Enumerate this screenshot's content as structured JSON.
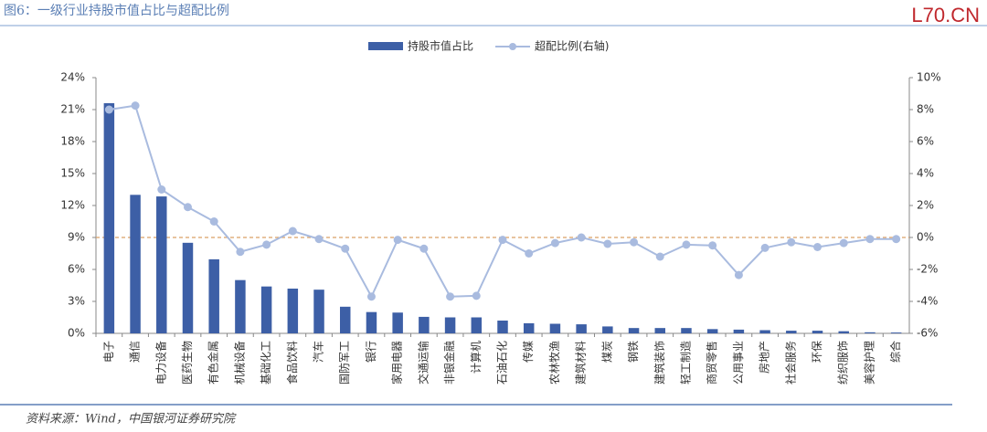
{
  "header": {
    "title": "图6：一级行业持股市值占比与超配比例",
    "logo": "L70.CN"
  },
  "footer": {
    "source": "资料来源：Wind，中国银河证券研究院"
  },
  "chart_data": {
    "type": "bar-line",
    "categories": [
      "电子",
      "通信",
      "电力设备",
      "医药生物",
      "有色金属",
      "机械设备",
      "基础化工",
      "食品饮料",
      "汽车",
      "国防军工",
      "银行",
      "家用电器",
      "交通运输",
      "非银金融",
      "计算机",
      "石油石化",
      "传媒",
      "农林牧渔",
      "建筑材料",
      "煤炭",
      "钢铁",
      "建筑装饰",
      "轻工制造",
      "商贸零售",
      "公用事业",
      "房地产",
      "社会服务",
      "环保",
      "纺织服饰",
      "美容护理",
      "综合"
    ],
    "series": [
      {
        "name": "持股市值占比",
        "type": "bar",
        "color": "#3d5fa6",
        "values": [
          21.6,
          13.0,
          12.85,
          8.5,
          6.95,
          5.0,
          4.4,
          4.2,
          4.1,
          2.5,
          2.0,
          1.95,
          1.55,
          1.5,
          1.5,
          1.2,
          0.95,
          0.9,
          0.85,
          0.65,
          0.5,
          0.5,
          0.5,
          0.4,
          0.35,
          0.3,
          0.25,
          0.25,
          0.2,
          0.1,
          0.08
        ]
      },
      {
        "name": "超配比例(右轴)",
        "type": "line",
        "axis": "y2",
        "color": "#a9bbdf",
        "values": [
          8.0,
          8.25,
          3.0,
          1.9,
          1.0,
          -0.9,
          -0.45,
          0.4,
          -0.1,
          -0.7,
          -3.7,
          -0.15,
          -0.7,
          -3.7,
          -3.65,
          -0.15,
          -1.0,
          -0.35,
          0.0,
          -0.4,
          -0.3,
          -1.2,
          -0.45,
          -0.5,
          -2.35,
          -0.65,
          -0.3,
          -0.6,
          -0.35,
          -0.1,
          -0.1
        ]
      }
    ],
    "ylim": [
      0,
      24
    ],
    "yticks": [
      {
        "value": 0,
        "label": "0%"
      },
      {
        "value": 3,
        "label": "3%"
      },
      {
        "value": 6,
        "label": "6%"
      },
      {
        "value": 9,
        "label": "9%"
      },
      {
        "value": 12,
        "label": "12%"
      },
      {
        "value": 15,
        "label": "15%"
      },
      {
        "value": 18,
        "label": "18%"
      },
      {
        "value": 21,
        "label": "21%"
      },
      {
        "value": 24,
        "label": "24%"
      }
    ],
    "y2lim": [
      -6,
      10
    ],
    "y2ticks": [
      {
        "value": -6,
        "label": "-6%"
      },
      {
        "value": -4,
        "label": "-4%"
      },
      {
        "value": -2,
        "label": "-2%"
      },
      {
        "value": 0,
        "label": "0%"
      },
      {
        "value": 2,
        "label": "2%"
      },
      {
        "value": 4,
        "label": "4%"
      },
      {
        "value": 6,
        "label": "6%"
      },
      {
        "value": 8,
        "label": "8%"
      },
      {
        "value": 10,
        "label": "10%"
      }
    ],
    "y2_zero_line": true,
    "zero_line_color": "#d9a066",
    "legend": "top"
  }
}
